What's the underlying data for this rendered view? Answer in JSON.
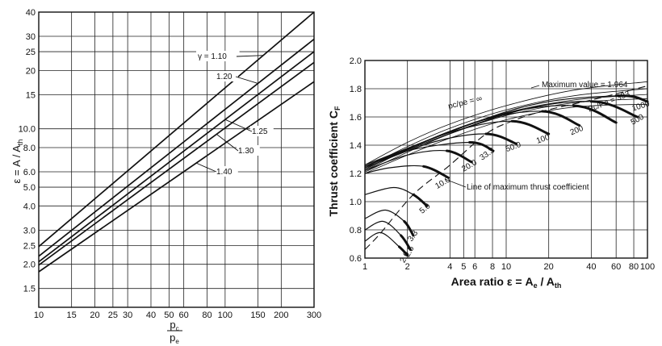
{
  "chart_data": [
    {
      "type": "line",
      "xscale": "log",
      "yscale": "log",
      "xlim": [
        10,
        300
      ],
      "ylim": [
        1.2,
        40
      ],
      "xticks": [
        10,
        15,
        20,
        25,
        30,
        40,
        50,
        60,
        80,
        100,
        150,
        200,
        300
      ],
      "xtick_labels": [
        "10",
        "15",
        "20",
        "25",
        "30",
        "40",
        "50",
        "60",
        "80",
        "100",
        "150",
        "200",
        "300"
      ],
      "yticks": [
        1.5,
        2.0,
        2.5,
        3.0,
        4.0,
        5.0,
        6.0,
        8.0,
        10.0,
        15,
        20,
        25,
        30,
        40
      ],
      "ytick_labels": [
        "1.5",
        "2.0",
        "2.5",
        "3.0",
        "4.0",
        "5.0",
        "6.0",
        "8.0",
        "10.0",
        "15",
        "20",
        "25",
        "30",
        "40"
      ],
      "ylabel": "ε = A / A",
      "ylabel_sub": "th",
      "xlabel_num": "p",
      "xlabel_num_sub": "c",
      "xlabel_den": "p",
      "xlabel_den_sub": "e",
      "grid": true,
      "series": [
        {
          "name": "γ = 1.10",
          "x": [
            10,
            300
          ],
          "y": [
            2.47,
            40.0
          ]
        },
        {
          "name": "1.20",
          "x": [
            10,
            300
          ],
          "y": [
            2.2,
            29.0
          ]
        },
        {
          "name": "1.25",
          "x": [
            10,
            300
          ],
          "y": [
            2.06,
            25.0
          ]
        },
        {
          "name": "1.30",
          "x": [
            10,
            300
          ],
          "y": [
            1.98,
            22.0
          ]
        },
        {
          "name": "1.40",
          "x": [
            10,
            300
          ],
          "y": [
            1.83,
            17.5
          ]
        }
      ],
      "annotations": [
        {
          "text": "γ = 1.10",
          "series": 0
        },
        {
          "text": "1.20",
          "series": 1
        },
        {
          "text": "1.25",
          "series": 2
        },
        {
          "text": "1.30",
          "series": 3
        },
        {
          "text": "1.40",
          "series": 4
        }
      ]
    },
    {
      "type": "line",
      "xscale": "log",
      "yscale": "linear",
      "xlim": [
        1,
        100
      ],
      "ylim": [
        0.6,
        2.0
      ],
      "xticks": [
        1,
        2,
        4,
        5,
        6,
        8,
        10,
        20,
        40,
        60,
        80,
        100
      ],
      "xtick_labels": [
        "1",
        "2",
        "4",
        "5",
        "6",
        "8",
        "10",
        "20",
        "40",
        "60",
        "80",
        "100"
      ],
      "yticks": [
        0.6,
        0.8,
        1.0,
        1.2,
        1.4,
        1.6,
        1.8,
        2.0
      ],
      "ytick_labels": [
        "0.6",
        "0.8",
        "1.0",
        "1.2",
        "1.4",
        "1.6",
        "1.8",
        "2.0"
      ],
      "xlabel": "Area ratio ε = A",
      "xlabel_sub1": "e",
      "xlabel_mid": " / A",
      "xlabel_sub2": "th",
      "ylabel": "Thrust coefficient C",
      "ylabel_sub": "F",
      "grid": true,
      "series": [
        {
          "name": "2.0",
          "bold": true,
          "x": [
            1,
            1.3,
            1.75,
            2.0
          ],
          "y": [
            0.72,
            0.78,
            0.68,
            0.62
          ]
        },
        {
          "name": "2.5",
          "bold": true,
          "x": [
            1,
            1.35,
            1.8,
            2.1
          ],
          "y": [
            0.8,
            0.86,
            0.76,
            0.66
          ]
        },
        {
          "name": "3.3",
          "bold": true,
          "x": [
            1,
            1.4,
            1.9,
            2.2
          ],
          "y": [
            0.88,
            0.94,
            0.86,
            0.76
          ]
        },
        {
          "name": "5.0",
          "bold": true,
          "x": [
            1,
            1.6,
            2.2,
            2.75
          ],
          "y": [
            1.05,
            1.1,
            1.05,
            0.97
          ]
        },
        {
          "name": "10.0",
          "bold": true,
          "x": [
            1,
            1.5,
            2.6,
            3.9
          ],
          "y": [
            1.2,
            1.24,
            1.25,
            1.17
          ]
        },
        {
          "name": "20.0",
          "bold": true,
          "x": [
            1,
            2,
            3.8,
            5.7
          ],
          "y": [
            1.22,
            1.33,
            1.36,
            1.28
          ]
        },
        {
          "name": "33.3",
          "bold": true,
          "x": [
            1,
            2,
            5.5,
            8.1
          ],
          "y": [
            1.23,
            1.36,
            1.42,
            1.36
          ]
        },
        {
          "name": "50.0",
          "bold": true,
          "x": [
            1,
            3,
            7.2,
            11.8
          ],
          "y": [
            1.24,
            1.42,
            1.48,
            1.41
          ]
        },
        {
          "name": "100",
          "bold": true,
          "x": [
            1,
            4,
            11,
            20
          ],
          "y": [
            1.25,
            1.49,
            1.57,
            1.48
          ]
        },
        {
          "name": "200",
          "bold": true,
          "x": [
            1,
            6,
            18,
            33
          ],
          "y": [
            1.25,
            1.56,
            1.64,
            1.54
          ]
        },
        {
          "name": "333",
          "bold": true,
          "x": [
            1,
            8,
            30,
            60
          ],
          "y": [
            1.25,
            1.6,
            1.68,
            1.56
          ]
        },
        {
          "name": "500",
          "bold": true,
          "x": [
            1,
            10,
            40,
            85
          ],
          "y": [
            1.25,
            1.62,
            1.71,
            1.6
          ]
        },
        {
          "name": "1000",
          "bold": true,
          "x": [
            1,
            12,
            60,
            100
          ],
          "y": [
            1.26,
            1.66,
            1.75,
            1.71
          ]
        },
        {
          "name": "∞",
          "bold": false,
          "x": [
            1,
            2,
            4,
            10,
            30,
            100
          ],
          "y": [
            1.26,
            1.42,
            1.55,
            1.68,
            1.79,
            1.85
          ]
        },
        {
          "name": "thin-1",
          "bold": false,
          "x": [
            1,
            2,
            4,
            10,
            30,
            100
          ],
          "y": [
            1.24,
            1.39,
            1.52,
            1.65,
            1.75,
            1.8
          ]
        },
        {
          "name": "thin-2",
          "bold": false,
          "x": [
            1,
            2,
            4,
            10,
            30,
            100
          ],
          "y": [
            1.22,
            1.37,
            1.5,
            1.63,
            1.72,
            1.76
          ]
        },
        {
          "name": "thin-3",
          "bold": false,
          "x": [
            1,
            2,
            4,
            10,
            30,
            100
          ],
          "y": [
            1.21,
            1.35,
            1.48,
            1.61,
            1.7,
            1.73
          ]
        },
        {
          "name": "thin-4",
          "bold": false,
          "x": [
            1,
            2,
            4,
            10,
            30,
            100
          ],
          "y": [
            1.2,
            1.33,
            1.45,
            1.58,
            1.67,
            1.69
          ]
        }
      ],
      "max_thrust_line": {
        "x": [
          1,
          1.3,
          2.2,
          3.9,
          7.2,
          11,
          18,
          40,
          100
        ],
        "y": [
          0.66,
          0.78,
          1.05,
          1.25,
          1.48,
          1.57,
          1.64,
          1.72,
          1.82
        ]
      },
      "annotations": [
        {
          "text": "Maximum value = 1.964"
        },
        {
          "text": "pc/pe = ∞"
        },
        {
          "text": "Pc/Pe = 333"
        },
        {
          "text": "Line of maximum thrust coefficient"
        }
      ],
      "curve_labels": [
        "2.0",
        "2.5",
        "3.3",
        "5.0",
        "10.0",
        "20.0",
        "33.3",
        "50.0",
        "100",
        "200",
        "500",
        "1000"
      ]
    }
  ]
}
